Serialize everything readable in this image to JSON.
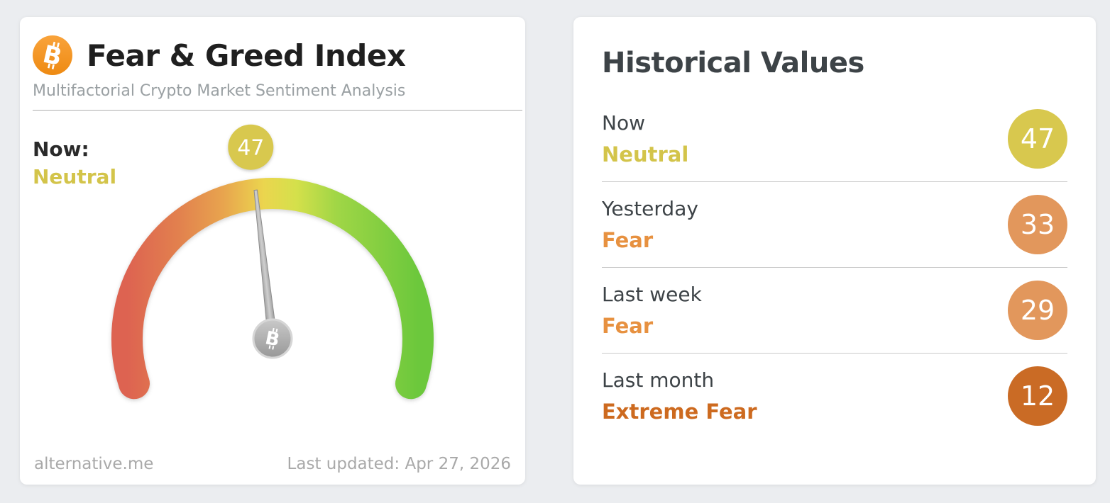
{
  "icons": {
    "bitcoin": "B"
  },
  "fear_greed_card": {
    "title": "Fear & Greed Index",
    "subtitle": "Multifactorial Crypto Market Sentiment Analysis",
    "now_label": "Now:",
    "now_classification": "Neutral",
    "now_classification_color": "#d3c44a",
    "gauge_value": "47",
    "gauge_badge_color": "#d8c84e",
    "footer_site": "alternative.me",
    "footer_updated": "Last updated: Apr 27, 2026"
  },
  "historical_card": {
    "title": "Historical Values",
    "rows": [
      {
        "label": "Now",
        "classification": "Neutral",
        "value": "47",
        "badge_color": "#d8c84e",
        "text_color": "#d3c44a"
      },
      {
        "label": "Yesterday",
        "classification": "Fear",
        "value": "33",
        "badge_color": "#e2975c",
        "text_color": "#e79140"
      },
      {
        "label": "Last week",
        "classification": "Fear",
        "value": "29",
        "badge_color": "#e2975c",
        "text_color": "#e79140"
      },
      {
        "label": "Last month",
        "classification": "Extreme Fear",
        "value": "12",
        "badge_color": "#ca6b25",
        "text_color": "#cd6a1f"
      }
    ]
  },
  "chart_data": {
    "type": "gauge",
    "title": "Fear & Greed Index",
    "subtitle": "Multifactorial Crypto Market Sentiment Analysis",
    "value": 47,
    "min": 0,
    "max": 100,
    "classification": "Neutral",
    "gradient_colors": [
      "#dd6351",
      "#e8a44e",
      "#ebd54e",
      "#a0d646",
      "#6cc83c"
    ],
    "last_updated": "Apr 27, 2026",
    "history": [
      {
        "label": "Now",
        "value": 47,
        "classification": "Neutral"
      },
      {
        "label": "Yesterday",
        "value": 33,
        "classification": "Fear"
      },
      {
        "label": "Last week",
        "value": 29,
        "classification": "Fear"
      },
      {
        "label": "Last month",
        "value": 12,
        "classification": "Extreme Fear"
      }
    ]
  }
}
